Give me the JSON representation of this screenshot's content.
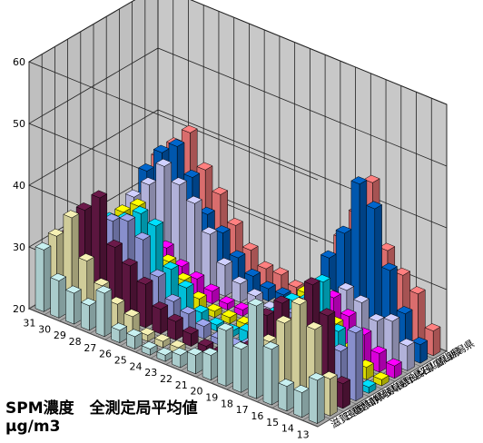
{
  "chart_data": {
    "type": "bar3d",
    "title": "SPM濃度　全測定局平均値",
    "unit": "μg/m3",
    "z_ticks": [
      "20",
      "30",
      "40",
      "50",
      "60"
    ],
    "ylim": [
      20,
      60
    ],
    "grid": true,
    "x_categories": [
      "13",
      "14",
      "15",
      "16",
      "17",
      "18",
      "19",
      "20",
      "21",
      "22",
      "23",
      "24",
      "25",
      "26",
      "27",
      "28",
      "29",
      "30",
      "31"
    ],
    "series": [
      {
        "name": "滋賀県",
        "color": "#c8f0f0",
        "values": [
          27,
          24,
          24,
          29,
          35,
          27,
          29,
          24,
          23,
          22,
          21,
          21,
          22,
          22,
          27,
          24,
          25,
          26,
          30
        ]
      },
      {
        "name": "三重県",
        "color": "#f5f0b4",
        "values": [
          26,
          33,
          36,
          32,
          28,
          25,
          23,
          21,
          21,
          20,
          21,
          21,
          21,
          23,
          24,
          26,
          29,
          35,
          31
        ]
      },
      {
        "name": "愛知県",
        "color": "#6b1a4a",
        "values": [
          24,
          34,
          38,
          31,
          33,
          30,
          24,
          22,
          21,
          21,
          22,
          23,
          24,
          27,
          29,
          31,
          38,
          35,
          30
        ]
      },
      {
        "name": "静岡県",
        "color": "#a0a8f0",
        "values": [
          31,
          27,
          28,
          33,
          30,
          28,
          25,
          22,
          21,
          21,
          22,
          23,
          24,
          27,
          32,
          34,
          33,
          30,
          29
        ]
      },
      {
        "name": "岐阜県",
        "color": "#00e0ff",
        "values": [
          21,
          23,
          28,
          35,
          31,
          30,
          27,
          22,
          22,
          21,
          21,
          22,
          25,
          27,
          33,
          34,
          32,
          31,
          29
        ]
      },
      {
        "name": "長野県",
        "color": "#ffff00",
        "values": [
          21,
          22,
          24,
          27,
          31,
          30,
          26,
          22,
          22,
          21,
          21,
          21,
          22,
          24,
          26,
          28,
          33,
          31,
          28
        ]
      },
      {
        "name": "山梨県",
        "color": "#ff00ff",
        "values": [
          22,
          23,
          25,
          27,
          29,
          27,
          24,
          22,
          21,
          21,
          21,
          21,
          22,
          23,
          24,
          26,
          28,
          27,
          26
        ]
      },
      {
        "name": "石川県",
        "color": "#d0d0ff",
        "values": [
          24,
          27,
          26,
          28,
          29,
          27,
          25,
          22,
          21,
          21,
          22,
          23,
          25,
          29,
          33,
          35,
          37,
          33,
          30
        ]
      },
      {
        "name": "富山県",
        "color": "#0066cc",
        "values": [
          23,
          27,
          33,
          42,
          45,
          36,
          31,
          23,
          22,
          22,
          22,
          23,
          25,
          28,
          30,
          35,
          39,
          37,
          33
        ]
      },
      {
        "name": "新潟県",
        "color": "#ff8080",
        "values": [
          24,
          29,
          31,
          34,
          44,
          38,
          33,
          23,
          22,
          22,
          23,
          23,
          25,
          28,
          32,
          35,
          40,
          37,
          34
        ]
      }
    ]
  },
  "caption": {
    "line1": "SPM濃度　全測定局平均値",
    "line2": "μg/m3"
  }
}
